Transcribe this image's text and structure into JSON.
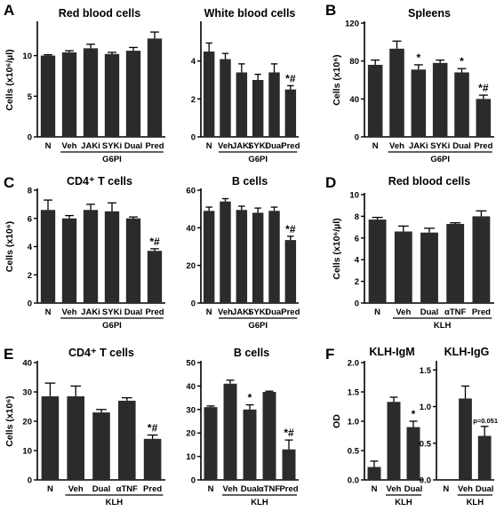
{
  "panel_labels": [
    "A",
    "B",
    "C",
    "D",
    "E",
    "F"
  ],
  "chart_data": [
    {
      "id": "A1",
      "type": "bar",
      "panel": "A",
      "title": "Red blood cells",
      "ylabel": "Cells (x10⁶/µl)",
      "ylim": [
        0,
        14
      ],
      "yticks": [
        "0",
        "5",
        "10"
      ],
      "ytick_values": [
        0,
        5,
        10
      ],
      "categories": [
        "N",
        "Veh",
        "JAKi",
        "SYKi",
        "Dual",
        "Pred"
      ],
      "values": [
        10.0,
        10.4,
        10.9,
        10.2,
        10.6,
        12.1
      ],
      "errors": [
        0.1,
        0.2,
        0.5,
        0.2,
        0.4,
        0.8
      ],
      "significance": [
        "",
        "",
        "",
        "",
        "",
        ""
      ],
      "group_label": "G6PI"
    },
    {
      "id": "A2",
      "type": "bar",
      "panel": "A",
      "title": "White blood cells",
      "ylabel": "",
      "ylim": [
        0,
        6
      ],
      "yticks": [
        "0",
        "2",
        "4"
      ],
      "ytick_values": [
        0,
        2,
        4
      ],
      "categories": [
        "N",
        "Veh",
        "JAKi",
        "SYKi",
        "Dual",
        "Pred"
      ],
      "values": [
        4.5,
        4.1,
        3.4,
        3.0,
        3.4,
        2.5
      ],
      "errors": [
        0.45,
        0.3,
        0.45,
        0.3,
        0.45,
        0.2
      ],
      "significance": [
        "",
        "",
        "",
        "",
        "",
        "*#"
      ],
      "group_label": "G6PI"
    },
    {
      "id": "B1",
      "type": "bar",
      "panel": "B",
      "title": "Spleens",
      "ylabel": "Cells (x10⁶)",
      "ylim": [
        0,
        120
      ],
      "yticks": [
        "0",
        "40",
        "80",
        "120"
      ],
      "ytick_values": [
        0,
        40,
        80,
        120
      ],
      "categories": [
        "N",
        "Veh",
        "JAKi",
        "SYKi",
        "Dual",
        "Pred"
      ],
      "values": [
        76,
        93,
        71,
        78,
        68,
        40
      ],
      "errors": [
        5,
        8,
        5,
        3,
        4,
        4
      ],
      "significance": [
        "",
        "",
        "*",
        "",
        "*",
        "*#"
      ],
      "group_label": "G6PI"
    },
    {
      "id": "C1",
      "type": "bar",
      "panel": "C",
      "title": "CD4⁺ T cells",
      "ylabel": "Cells (x10⁶)",
      "ylim": [
        0,
        8
      ],
      "yticks": [
        "0",
        "2",
        "4",
        "6",
        "8"
      ],
      "ytick_values": [
        0,
        2,
        4,
        6,
        8
      ],
      "categories": [
        "N",
        "Veh",
        "JAKi",
        "SYKi",
        "Dual",
        "Pred"
      ],
      "values": [
        6.6,
        6.0,
        6.6,
        6.5,
        6.0,
        3.7
      ],
      "errors": [
        0.7,
        0.2,
        0.4,
        0.6,
        0.1,
        0.15
      ],
      "significance": [
        "",
        "",
        "",
        "",
        "",
        "*#"
      ],
      "group_label": "G6PI"
    },
    {
      "id": "C2",
      "type": "bar",
      "panel": "C",
      "title": "B cells",
      "ylabel": "",
      "ylim": [
        0,
        60
      ],
      "yticks": [
        "0",
        "20",
        "40",
        "60"
      ],
      "ytick_values": [
        0,
        20,
        40,
        60
      ],
      "categories": [
        "N",
        "Veh",
        "JAKi",
        "SYKi",
        "Dual",
        "Pred"
      ],
      "values": [
        49,
        54,
        49.5,
        48,
        49,
        33.5
      ],
      "errors": [
        2,
        1.5,
        2,
        2.5,
        2,
        2
      ],
      "significance": [
        "",
        "",
        "",
        "",
        "",
        "*#"
      ],
      "group_label": "G6PI"
    },
    {
      "id": "D1",
      "type": "bar",
      "panel": "D",
      "title": "Red blood cells",
      "ylabel": "Cells (x10⁶/µl)",
      "ylim": [
        0,
        10
      ],
      "yticks": [
        "0",
        "2",
        "4",
        "6",
        "8",
        "10"
      ],
      "ytick_values": [
        0,
        2,
        4,
        6,
        8,
        10
      ],
      "categories": [
        "N",
        "Veh",
        "Dual",
        "αTNF",
        "Pred"
      ],
      "values": [
        7.7,
        6.6,
        6.5,
        7.3,
        8.0
      ],
      "errors": [
        0.2,
        0.5,
        0.4,
        0.1,
        0.5
      ],
      "significance": [
        "",
        "",
        "",
        "",
        ""
      ],
      "group_label": "KLH"
    },
    {
      "id": "E1",
      "type": "bar",
      "panel": "E",
      "title": "CD4⁺ T cells",
      "ylabel": "Cells (x10⁶)",
      "ylim": [
        0,
        40
      ],
      "yticks": [
        "0",
        "10",
        "20",
        "30",
        "40"
      ],
      "ytick_values": [
        0,
        10,
        20,
        30,
        40
      ],
      "categories": [
        "N",
        "Veh",
        "Dual",
        "αTNF",
        "Pred"
      ],
      "values": [
        28.5,
        28.5,
        23,
        27,
        14
      ],
      "errors": [
        4.5,
        3.5,
        1,
        1,
        1.3
      ],
      "significance": [
        "",
        "",
        "",
        "",
        "*#"
      ],
      "group_label": "KLH"
    },
    {
      "id": "E2",
      "type": "bar",
      "panel": "E",
      "title": "B cells",
      "ylabel": "",
      "ylim": [
        0,
        50
      ],
      "yticks": [
        "0",
        "10",
        "20",
        "30",
        "40",
        "50"
      ],
      "ytick_values": [
        0,
        10,
        20,
        30,
        40,
        50
      ],
      "categories": [
        "N",
        "Veh",
        "Dual",
        "αTNF",
        "Pred"
      ],
      "values": [
        31,
        41,
        30,
        37.5,
        13
      ],
      "errors": [
        0.5,
        1.5,
        2,
        0.3,
        4
      ],
      "significance": [
        "",
        "",
        "*",
        "",
        "*#"
      ],
      "group_label": "KLH"
    },
    {
      "id": "F1",
      "type": "bar",
      "panel": "F",
      "title": "KLH-IgM",
      "ylabel": "OD",
      "ylim": [
        0,
        2.0
      ],
      "yticks": [
        "0.0",
        "0.5",
        "1.0",
        "1.5",
        "2.0"
      ],
      "ytick_values": [
        0,
        0.5,
        1.0,
        1.5,
        2.0
      ],
      "categories": [
        "N",
        "Veh",
        "Dual"
      ],
      "values": [
        0.22,
        1.33,
        0.9
      ],
      "errors": [
        0.1,
        0.08,
        0.1
      ],
      "significance": [
        "",
        "",
        "*"
      ],
      "annotation": "",
      "group_label": "KLH"
    },
    {
      "id": "F2",
      "type": "bar",
      "panel": "F",
      "title": "KLH-IgG",
      "ylabel": "",
      "ylim": [
        0,
        1.6
      ],
      "yticks": [
        "0.0",
        "0.5",
        "1.0",
        "1.5"
      ],
      "ytick_values": [
        0,
        0.5,
        1.0,
        1.5
      ],
      "categories": [
        "N",
        "Veh",
        "Dual"
      ],
      "values": [
        0.01,
        1.11,
        0.6
      ],
      "errors": [
        0.0,
        0.17,
        0.13
      ],
      "significance": [
        "",
        "",
        ""
      ],
      "annotation": "p=0.051",
      "group_label": "KLH"
    }
  ]
}
